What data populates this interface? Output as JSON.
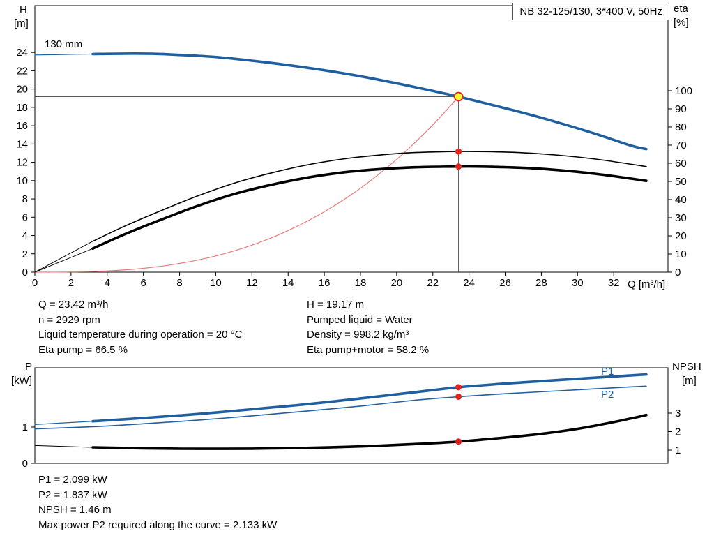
{
  "title_box": "NB 32-125/130, 3*400 V, 50Hz",
  "labels": {
    "h_axis": "H",
    "h_unit": "[m]",
    "eta_axis": "eta",
    "eta_unit": "[%]",
    "q_axis": "Q [m³/h]",
    "p_axis": "P",
    "p_unit": "[kW]",
    "npsh_axis": "NPSH",
    "npsh_unit": "[m]",
    "impeller_size": "130 mm",
    "p1_curve": "P1",
    "p2_curve": "P2"
  },
  "operating_data": {
    "col1": [
      "Q = 23.42 m³/h",
      "n = 2929 rpm",
      "Liquid temperature during operation = 20 °C",
      "Eta pump = 66.5 %"
    ],
    "col2": [
      "H = 19.17 m",
      "Pumped liquid = Water",
      "Density = 998.2 kg/m³",
      "Eta pump+motor = 58.2 %"
    ]
  },
  "power_data": [
    "P1 = 2.099 kW",
    "P2 = 1.837 kW",
    "NPSH = 1.46 m",
    "Max power P2 required along the curve = 2.133 kW"
  ],
  "colors": {
    "curve_blue": "#1f5fa0",
    "curve_black": "#000000",
    "marker_red": "#e3231d",
    "system_curve_red": "#e87c7c",
    "duty_point_yellow": "#ffff33",
    "guide_gray": "#555555"
  },
  "chart_data": [
    {
      "type": "line",
      "name": "qh-eta-chart",
      "title": "",
      "x_axis": {
        "label": "Q [m³/h]",
        "range": [
          0,
          35
        ],
        "ticks": [
          0,
          2,
          4,
          6,
          8,
          10,
          12,
          14,
          16,
          18,
          20,
          22,
          24,
          26,
          28,
          30,
          32
        ]
      },
      "left_axis": {
        "label": "H [m]",
        "range": [
          0,
          29.12
        ],
        "ticks": [
          0,
          2,
          4,
          6,
          8,
          10,
          12,
          14,
          16,
          18,
          20,
          22,
          24
        ]
      },
      "right_axis": {
        "label": "eta [%]",
        "range": [
          0,
          146.9
        ],
        "ticks": [
          0,
          10,
          20,
          30,
          40,
          50,
          60,
          70,
          80,
          90,
          100
        ]
      },
      "guides": {
        "q": 23.42,
        "h": 19.17
      },
      "series": [
        {
          "name": "pump-curve-lead",
          "axis": "left",
          "color": "curve_blue",
          "width": 1.2,
          "points": [
            [
              0,
              23.72
            ],
            [
              1.6,
              23.78
            ],
            [
              3.2,
              23.82
            ]
          ]
        },
        {
          "name": "pump-curve-130mm",
          "axis": "left",
          "color": "curve_blue",
          "width": 3.6,
          "points": [
            [
              3.2,
              23.82
            ],
            [
              5,
              23.87
            ],
            [
              6.5,
              23.85
            ],
            [
              8,
              23.73
            ],
            [
              10,
              23.5
            ],
            [
              12,
              23.1
            ],
            [
              14,
              22.62
            ],
            [
              16,
              22.05
            ],
            [
              18,
              21.4
            ],
            [
              20,
              20.63
            ],
            [
              22,
              19.8
            ],
            [
              23.42,
              19.17
            ],
            [
              25,
              18.4
            ],
            [
              27,
              17.4
            ],
            [
              29,
              16.3
            ],
            [
              31,
              15.1
            ],
            [
              33,
              13.8
            ],
            [
              33.8,
              13.45
            ]
          ]
        },
        {
          "name": "system-curve",
          "axis": "left",
          "color": "system_curve_red",
          "width": 1.2,
          "points": [
            [
              0,
              0
            ],
            [
              2,
              0.02
            ],
            [
              4,
              0.14
            ],
            [
              6,
              0.42
            ],
            [
              8,
              0.95
            ],
            [
              10,
              1.77
            ],
            [
              12,
              2.95
            ],
            [
              14,
              4.54
            ],
            [
              16,
              6.6
            ],
            [
              18,
              9.17
            ],
            [
              20,
              12.32
            ],
            [
              21.5,
              15.09
            ],
            [
              22.5,
              17.14
            ],
            [
              23.42,
              19.17
            ]
          ]
        },
        {
          "name": "eta-pump-lead",
          "axis": "right",
          "color": "curve_black",
          "width": 1,
          "points": [
            [
              0,
              0
            ],
            [
              3.2,
              17
            ]
          ]
        },
        {
          "name": "eta-pump-curve",
          "axis": "right",
          "color": "curve_black",
          "width": 1.6,
          "points": [
            [
              3.2,
              17
            ],
            [
              5,
              25.5
            ],
            [
              7,
              34
            ],
            [
              9,
              42
            ],
            [
              11,
              49
            ],
            [
              13,
              54.5
            ],
            [
              15,
              59
            ],
            [
              17,
              62.3
            ],
            [
              19,
              64.5
            ],
            [
              21,
              65.9
            ],
            [
              23.42,
              66.5
            ],
            [
              25,
              66.4
            ],
            [
              27,
              65.8
            ],
            [
              29,
              64.4
            ],
            [
              31,
              62.3
            ],
            [
              33,
              59.4
            ],
            [
              33.8,
              58.2
            ]
          ]
        },
        {
          "name": "eta-pump-motor-lead",
          "axis": "right",
          "color": "curve_black",
          "width": 1,
          "points": [
            [
              0,
              0
            ],
            [
              3.2,
              13
            ]
          ]
        },
        {
          "name": "eta-pump-motor-curve",
          "axis": "right",
          "color": "curve_black",
          "width": 3.6,
          "points": [
            [
              3.2,
              13
            ],
            [
              5,
              21
            ],
            [
              7,
              29
            ],
            [
              9,
              36.5
            ],
            [
              11,
              43
            ],
            [
              13,
              48
            ],
            [
              15,
              52
            ],
            [
              17,
              54.9
            ],
            [
              19,
              56.7
            ],
            [
              21,
              57.8
            ],
            [
              23.42,
              58.2
            ],
            [
              25,
              58.1
            ],
            [
              27,
              57.5
            ],
            [
              29,
              56.2
            ],
            [
              31,
              54.2
            ],
            [
              33,
              51.5
            ],
            [
              33.8,
              50.3
            ]
          ]
        }
      ],
      "markers": [
        {
          "q": 23.42,
          "v": 66.5,
          "axis": "right",
          "type": "dot"
        },
        {
          "q": 23.42,
          "v": 58.2,
          "axis": "right",
          "type": "dot"
        },
        {
          "q": 23.42,
          "v": 19.17,
          "axis": "left",
          "type": "duty"
        }
      ]
    },
    {
      "type": "line",
      "name": "power-npsh-chart",
      "title": "",
      "x_axis": {
        "label": "",
        "range": [
          0,
          35
        ],
        "ticks": []
      },
      "left_axis": {
        "label": "P [kW]",
        "range": [
          0,
          2.635
        ],
        "ticks": [
          0,
          1
        ]
      },
      "right_axis": {
        "label": "NPSH [m]",
        "range": [
          0.283,
          5.453
        ],
        "ticks": [
          1,
          2,
          3
        ]
      },
      "series": [
        {
          "name": "p1-curve-lead",
          "axis": "left",
          "color": "curve_blue",
          "width": 1.2,
          "points": [
            [
              0,
              1.07
            ],
            [
              3.2,
              1.16
            ]
          ]
        },
        {
          "name": "p1-curve",
          "axis": "left",
          "color": "curve_blue",
          "width": 3.6,
          "points": [
            [
              3.2,
              1.16
            ],
            [
              6,
              1.25
            ],
            [
              9,
              1.36
            ],
            [
              12,
              1.49
            ],
            [
              15,
              1.63
            ],
            [
              18,
              1.79
            ],
            [
              21,
              1.96
            ],
            [
              23.42,
              2.099
            ],
            [
              26,
              2.2
            ],
            [
              29,
              2.3
            ],
            [
              31.5,
              2.38
            ],
            [
              33.8,
              2.45
            ]
          ]
        },
        {
          "name": "p2-curve",
          "axis": "left",
          "color": "curve_blue",
          "width": 1.6,
          "points": [
            [
              0,
              0.95
            ],
            [
              3.2,
              1.01
            ],
            [
              6,
              1.09
            ],
            [
              9,
              1.19
            ],
            [
              12,
              1.31
            ],
            [
              15,
              1.44
            ],
            [
              18,
              1.58
            ],
            [
              21,
              1.74
            ],
            [
              23.42,
              1.837
            ],
            [
              26,
              1.92
            ],
            [
              29,
              2.0
            ],
            [
              31.5,
              2.07
            ],
            [
              33.8,
              2.13
            ]
          ]
        },
        {
          "name": "npsh-curve-lead",
          "axis": "right",
          "color": "curve_black",
          "width": 1,
          "points": [
            [
              0,
              1.25
            ],
            [
              3.2,
              1.15
            ]
          ]
        },
        {
          "name": "npsh-curve",
          "axis": "right",
          "color": "curve_black",
          "width": 3.6,
          "points": [
            [
              3.2,
              1.15
            ],
            [
              6,
              1.1
            ],
            [
              9,
              1.07
            ],
            [
              12,
              1.08
            ],
            [
              15,
              1.12
            ],
            [
              18,
              1.2
            ],
            [
              21,
              1.33
            ],
            [
              23.42,
              1.46
            ],
            [
              26,
              1.68
            ],
            [
              28,
              1.88
            ],
            [
              30,
              2.15
            ],
            [
              31.5,
              2.42
            ],
            [
              33,
              2.72
            ],
            [
              33.8,
              2.9
            ]
          ]
        }
      ],
      "markers": [
        {
          "q": 23.42,
          "v": 2.099,
          "axis": "left",
          "type": "dot"
        },
        {
          "q": 23.42,
          "v": 1.837,
          "axis": "left",
          "type": "dot"
        },
        {
          "q": 23.42,
          "v": 1.46,
          "axis": "right",
          "type": "dot"
        }
      ]
    }
  ]
}
